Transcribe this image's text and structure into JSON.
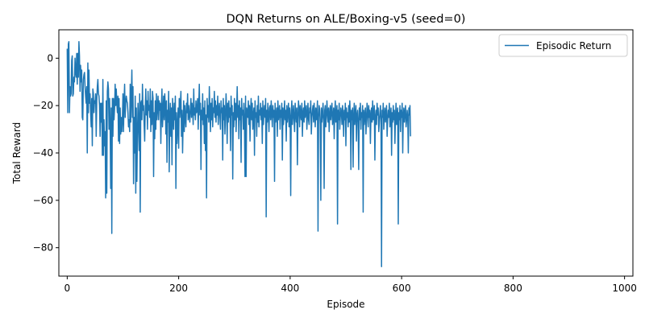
{
  "chart_data": {
    "type": "line",
    "title": "DQN Returns on ALE/Boxing-v5 (seed=0)",
    "xlabel": "Episode",
    "ylabel": "Total Reward",
    "xlim": [
      -15,
      1015
    ],
    "ylim": [
      -92,
      12
    ],
    "xticks": [
      0,
      200,
      400,
      600,
      800,
      1000
    ],
    "yticks": [
      0,
      -20,
      -40,
      -60,
      -80
    ],
    "grid": false,
    "legend_position": "top-right",
    "series_color": "#1f77b4",
    "series": [
      {
        "name": "Episodic Return",
        "x_start": 0,
        "x_step": 1,
        "values": [
          4,
          -23,
          6,
          7,
          -23,
          -12,
          -16,
          -15,
          -1,
          1,
          -16,
          -15,
          -8,
          -10,
          0,
          -6,
          -8,
          2,
          -11,
          2,
          -8,
          7,
          1,
          -14,
          -3,
          -10,
          -5,
          -25,
          -26,
          -9,
          -7,
          -6,
          -12,
          -16,
          -19,
          -12,
          -40,
          -2,
          -23,
          -5,
          -19,
          -15,
          -23,
          -29,
          -17,
          -37,
          -13,
          -15,
          -23,
          -18,
          -19,
          -15,
          -33,
          -18,
          -12,
          -9,
          -15,
          -16,
          -20,
          -33,
          -19,
          -27,
          -19,
          -41,
          -9,
          -41,
          -26,
          -37,
          -31,
          -59,
          -18,
          -57,
          -14,
          -10,
          -13,
          -30,
          -17,
          -29,
          -55,
          -21,
          -74,
          -17,
          -33,
          -17,
          -26,
          -21,
          -11,
          -20,
          -13,
          -19,
          -23,
          -16,
          -35,
          -17,
          -36,
          -21,
          -32,
          -25,
          -31,
          -26,
          -15,
          -31,
          -18,
          -11,
          -25,
          -19,
          -16,
          -18,
          -19,
          -23,
          -29,
          -26,
          -31,
          -11,
          -27,
          -16,
          -5,
          -25,
          -12,
          -53,
          -25,
          -40,
          -16,
          -57,
          -21,
          -52,
          -33,
          -19,
          -28,
          -39,
          -15,
          -65,
          -19,
          -18,
          -26,
          -11,
          -22,
          -20,
          -28,
          -35,
          -21,
          -13,
          -24,
          -18,
          -30,
          -14,
          -22,
          -20,
          -25,
          -13,
          -31,
          -18,
          -28,
          -14,
          -17,
          -50,
          -23,
          -34,
          -18,
          -30,
          -15,
          -26,
          -21,
          -16,
          -26,
          -18,
          -22,
          -19,
          -36,
          -21,
          -13,
          -29,
          -23,
          -16,
          -26,
          -15,
          -20,
          -32,
          -18,
          -44,
          -22,
          -27,
          -14,
          -48,
          -25,
          -19,
          -33,
          -21,
          -45,
          -17,
          -24,
          -30,
          -19,
          -26,
          -16,
          -55,
          -23,
          -36,
          -29,
          -21,
          -38,
          -17,
          -25,
          -19,
          -14,
          -33,
          -22,
          -40,
          -27,
          -18,
          -31,
          -20,
          -25,
          -29,
          -19,
          -23,
          -15,
          -26,
          -20,
          -24,
          -27,
          -21,
          -17,
          -25,
          -19,
          -22,
          -28,
          -13,
          -24,
          -21,
          -26,
          -18,
          -23,
          -22,
          -17,
          -30,
          -20,
          -11,
          -24,
          -19,
          -47,
          -22,
          -26,
          -15,
          -28,
          -21,
          -36,
          -18,
          -39,
          -24,
          -59,
          -17,
          -25,
          -20,
          -27,
          -12,
          -22,
          -31,
          -19,
          -26,
          -17,
          -29,
          -21,
          -23,
          -14,
          -25,
          -18,
          -27,
          -20,
          -24,
          -16,
          -28,
          -22,
          -19,
          -25,
          -30,
          -18,
          -23,
          -21,
          -43,
          -17,
          -26,
          -20,
          -32,
          -24,
          -15,
          -22,
          -36,
          -19,
          -27,
          -18,
          -25,
          -21,
          -39,
          -16,
          -24,
          -20,
          -51,
          -23,
          -29,
          -17,
          -26,
          -19,
          -31,
          -22,
          -12,
          -25,
          -20,
          -34,
          -18,
          -26,
          -21,
          -44,
          -17,
          -24,
          -22,
          -30,
          -19,
          -27,
          -50,
          -16,
          -50,
          -21,
          -23,
          -25,
          -18,
          -28,
          -20,
          -35,
          -22,
          -17,
          -26,
          -19,
          -30,
          -24,
          -21,
          -41,
          -18,
          -25,
          -23,
          -33,
          -20,
          -27,
          -16,
          -29,
          -22,
          -24,
          -19,
          -26,
          -21,
          -36,
          -18,
          -28,
          -23,
          -20,
          -25,
          -17,
          -67,
          -22,
          -27,
          -19,
          -24,
          -31,
          -21,
          -20,
          -26,
          -18,
          -23,
          -29,
          -20,
          -25,
          -22,
          -52,
          -19,
          -27,
          -24,
          -21,
          -33,
          -18,
          -26,
          -23,
          -20,
          -30,
          -22,
          -25,
          -19,
          -43,
          -21,
          -28,
          -24,
          -18,
          -26,
          -22,
          -35,
          -20,
          -27,
          -23,
          -19,
          -29,
          -21,
          -25,
          -58,
          -22,
          -18,
          -28,
          -24,
          -20,
          -26,
          -31,
          -19,
          -23,
          -27,
          -21,
          -45,
          -25,
          -18,
          -22,
          -29,
          -20,
          -24,
          -26,
          -19,
          -33,
          -23,
          -21,
          -27,
          -18,
          -25,
          -22,
          -20,
          -30,
          -24,
          -19,
          -26,
          -28,
          -21,
          -23,
          -18,
          -32,
          -25,
          -22,
          -20,
          -27,
          -19,
          -24,
          -29,
          -21,
          -26,
          -23,
          -18,
          -73,
          -25,
          -20,
          -22,
          -28,
          -60,
          -21,
          -27,
          -24,
          -19,
          -26,
          -55,
          -22,
          -20,
          -29,
          -25,
          -18,
          -23,
          -27,
          -21,
          -31,
          -24,
          -20,
          -26,
          -22,
          -19,
          -28,
          -25,
          -21,
          -34,
          -23,
          -18,
          -27,
          -24,
          -20,
          -70,
          -22,
          -26,
          -19,
          -30,
          -25,
          -21,
          -23,
          -28,
          -20,
          -24,
          -33,
          -22,
          -26,
          -19,
          -37,
          -21,
          -25,
          -23,
          -29,
          -20,
          -27,
          -18,
          -24,
          -47,
          -22,
          -26,
          -21,
          -46,
          -25,
          -19,
          -28,
          -23,
          -20,
          -35,
          -24,
          -22,
          -27,
          -47,
          -21,
          -26,
          -19,
          -30,
          -23,
          -25,
          -20,
          -65,
          -22,
          -28,
          -24,
          -21,
          -32,
          -26,
          -19,
          -23,
          -29,
          -20,
          -25,
          -22,
          -36,
          -24,
          -21,
          -27,
          -18,
          -26,
          -23,
          -20,
          -43,
          -25,
          -22,
          -28,
          -19,
          -24,
          -21,
          -31,
          -27,
          -23,
          -20,
          -26,
          -88,
          -22,
          -25,
          -19,
          -30,
          -24,
          -21,
          -27,
          -23,
          -20,
          -33,
          -26,
          -22,
          -25,
          -19,
          -29,
          -24,
          -21,
          -41,
          -23,
          -27,
          -20,
          -26,
          -22,
          -36,
          -25,
          -19,
          -28,
          -24,
          -21,
          -70,
          -23,
          -26,
          -20,
          -31,
          -22,
          -25,
          -19,
          -40,
          -24,
          -21,
          -27,
          -23,
          -20,
          -29,
          -26,
          -22,
          -25,
          -40,
          -21,
          -24,
          -20,
          -33
        ]
      }
    ]
  }
}
